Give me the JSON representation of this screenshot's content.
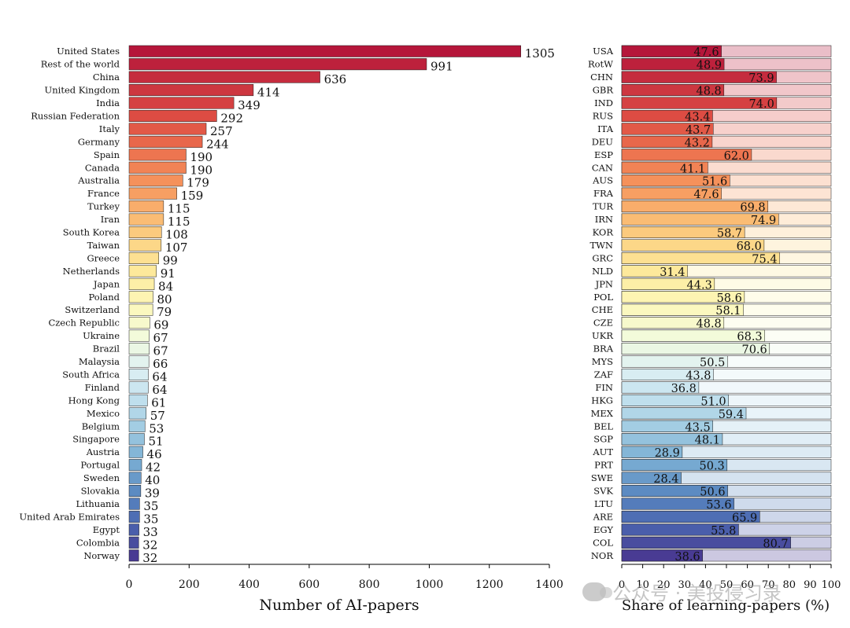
{
  "chart_data": [
    {
      "type": "bar",
      "orientation": "horizontal",
      "categories": [
        "United States",
        "Rest of the world",
        "China",
        "United Kingdom",
        "India",
        "Russian Federation",
        "Italy",
        "Germany",
        "Spain",
        "Canada",
        "Australia",
        "France",
        "Turkey",
        "Iran",
        "South Korea",
        "Taiwan",
        "Greece",
        "Netherlands",
        "Japan",
        "Poland",
        "Switzerland",
        "Czech Republic",
        "Ukraine",
        "Brazil",
        "Malaysia",
        "South Africa",
        "Finland",
        "Hong Kong",
        "Mexico",
        "Belgium",
        "Singapore",
        "Austria",
        "Portugal",
        "Sweden",
        "Slovakia",
        "Lithuania",
        "United Arab Emirates",
        "Egypt",
        "Colombia",
        "Norway"
      ],
      "values": [
        1305,
        991,
        636,
        414,
        349,
        292,
        257,
        244,
        190,
        190,
        179,
        159,
        115,
        115,
        108,
        107,
        99,
        91,
        84,
        80,
        79,
        69,
        67,
        67,
        66,
        64,
        64,
        61,
        57,
        53,
        51,
        46,
        42,
        40,
        39,
        35,
        35,
        33,
        32,
        32
      ],
      "value_labels": [
        "1305",
        "991",
        "636",
        "414",
        "349",
        "292",
        "257",
        "244",
        "190",
        "190",
        "179",
        "159",
        "115",
        "115",
        "108",
        "107",
        "99",
        "91",
        "84",
        "80",
        "79",
        "69",
        "67",
        "67",
        "66",
        "64",
        "64",
        "61",
        "57",
        "53",
        "51",
        "46",
        "42",
        "40",
        "39",
        "35",
        "35",
        "33",
        "32",
        "32"
      ],
      "xlabel": "Number of AI-papers",
      "xlim": [
        0,
        1400
      ],
      "xticks": [
        "0",
        "200",
        "400",
        "600",
        "800",
        "1000",
        "1200",
        "1400"
      ]
    },
    {
      "type": "bar",
      "orientation": "horizontal",
      "stacked_with_remainder": true,
      "categories": [
        "USA",
        "RotW",
        "CHN",
        "GBR",
        "IND",
        "RUS",
        "ITA",
        "DEU",
        "ESP",
        "CAN",
        "AUS",
        "FRA",
        "TUR",
        "IRN",
        "KOR",
        "TWN",
        "GRC",
        "NLD",
        "JPN",
        "POL",
        "CHE",
        "CZE",
        "UKR",
        "BRA",
        "MYS",
        "ZAF",
        "FIN",
        "HKG",
        "MEX",
        "BEL",
        "SGP",
        "AUT",
        "PRT",
        "SWE",
        "SVK",
        "LTU",
        "ARE",
        "EGY",
        "COL",
        "NOR"
      ],
      "values": [
        47.6,
        48.9,
        73.9,
        48.8,
        74.0,
        43.4,
        43.7,
        43.2,
        62.0,
        41.1,
        51.6,
        47.6,
        69.8,
        74.9,
        58.7,
        68.0,
        75.4,
        31.4,
        44.3,
        58.6,
        58.1,
        48.8,
        68.3,
        70.6,
        50.5,
        43.8,
        36.8,
        51.0,
        59.4,
        43.5,
        48.1,
        28.9,
        50.3,
        28.4,
        50.6,
        53.6,
        65.9,
        55.8,
        80.7,
        38.6
      ],
      "value_labels": [
        "47.6",
        "48.9",
        "73.9",
        "48.8",
        "74.0",
        "43.4",
        "43.7",
        "43.2",
        "62.0",
        "41.1",
        "51.6",
        "47.6",
        "69.8",
        "74.9",
        "58.7",
        "68.0",
        "75.4",
        "31.4",
        "44.3",
        "58.6",
        "58.1",
        "48.8",
        "68.3",
        "70.6",
        "50.5",
        "43.8",
        "36.8",
        "51.0",
        "59.4",
        "43.5",
        "48.1",
        "28.9",
        "50.3",
        "28.4",
        "50.6",
        "53.6",
        "65.9",
        "55.8",
        "80.7",
        "38.6"
      ],
      "xlabel": "Share of learning-papers (%)",
      "xlim": [
        0,
        100
      ],
      "xticks": [
        "0",
        "10",
        "20",
        "30",
        "40",
        "50",
        "60",
        "70",
        "80",
        "90",
        "100"
      ]
    }
  ],
  "colors": {
    "palette": [
      "#b5163a",
      "#c9313f",
      "#dc4a43",
      "#ea6b4c",
      "#f48d59",
      "#f9b06c",
      "#fcd384",
      "#fdea9c",
      "#fdf7b8",
      "#f4fbd9",
      "#e0f1f3",
      "#c2e1ee",
      "#9fcbe2",
      "#7aaed3",
      "#5a89c1",
      "#4a66b0",
      "#493b93"
    ],
    "bar_outline": "#1a1a1a",
    "axis": "#000000",
    "remainder_opacity": "0.28"
  },
  "watermark": {
    "text": "公众号 · 美投侵习录",
    "icon": "wechat-icon"
  }
}
